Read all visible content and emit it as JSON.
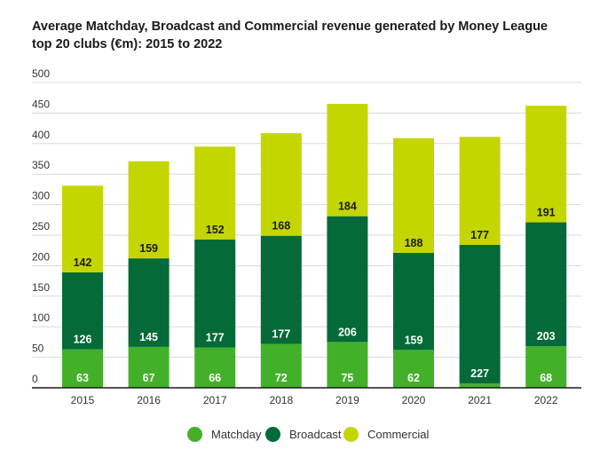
{
  "chart_data": {
    "type": "bar",
    "stacked": true,
    "title_lines": [
      "Average Matchday, Broadcast and Commercial revenue generated by Money League",
      "top 20 clubs (€m): 2015 to 2022"
    ],
    "categories": [
      "2015",
      "2016",
      "2017",
      "2018",
      "2019",
      "2020",
      "2021",
      "2022"
    ],
    "series": [
      {
        "name": "Matchday",
        "color": "#43b02a",
        "values": [
          63,
          67,
          66,
          72,
          75,
          62,
          7,
          68
        ],
        "labels": [
          "63",
          "67",
          "66",
          "72",
          "75",
          "62",
          "",
          "68"
        ]
      },
      {
        "name": "Broadcast",
        "color": "#046a38",
        "values": [
          126,
          145,
          177,
          177,
          206,
          159,
          227,
          203
        ],
        "labels": [
          "126",
          "145",
          "177",
          "177",
          "206",
          "159",
          "227",
          "203"
        ]
      },
      {
        "name": "Commercial",
        "color": "#c4d600",
        "values": [
          142,
          159,
          152,
          168,
          184,
          188,
          177,
          191
        ],
        "labels": [
          "142",
          "159",
          "152",
          "168",
          "184",
          "188",
          "177",
          "191"
        ]
      }
    ],
    "ylim": [
      0,
      500
    ],
    "yticks": [
      "0",
      "50",
      "100",
      "150",
      "200",
      "250",
      "300",
      "350",
      "400",
      "450",
      "500"
    ],
    "grid": true,
    "legend_position": "bottom-center"
  }
}
